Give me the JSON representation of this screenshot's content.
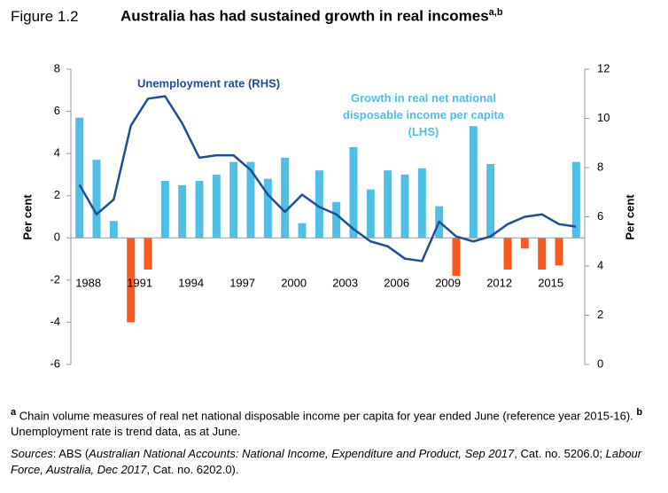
{
  "chart_data": {
    "type": "bar_line",
    "figure_label": "Figure 1.2",
    "title": "Australia has had sustained growth in real incomes",
    "title_superscript": "a,b",
    "categories": [
      "1988",
      null,
      null,
      "1991",
      null,
      null,
      "1994",
      null,
      null,
      "1997",
      null,
      null,
      "2000",
      null,
      null,
      "2003",
      null,
      null,
      "2006",
      null,
      null,
      "2009",
      null,
      null,
      "2012",
      null,
      null,
      "2015",
      null,
      null
    ],
    "series": [
      {
        "name": "Growth in real net national disposable income per capita (LHS)",
        "type": "bar",
        "color": "#4fbfe6",
        "negative_color": "#fa5a1e",
        "axis": "y",
        "values": [
          5.7,
          3.7,
          0.8,
          -4.0,
          -1.5,
          2.7,
          2.5,
          2.7,
          3.0,
          3.6,
          3.6,
          2.8,
          3.8,
          0.7,
          3.2,
          1.7,
          4.3,
          2.3,
          3.2,
          3.0,
          3.3,
          1.5,
          -1.8,
          5.3,
          3.5,
          -1.5,
          -0.5,
          -1.5,
          -1.3,
          3.6
        ]
      },
      {
        "name": "Unemployment rate (RHS)",
        "type": "line",
        "color": "#1f4e99",
        "axis": "y2",
        "values": [
          7.3,
          6.1,
          6.7,
          9.7,
          10.8,
          10.9,
          9.8,
          8.4,
          8.5,
          8.5,
          7.9,
          6.9,
          6.2,
          6.9,
          6.4,
          6.1,
          5.5,
          5.0,
          4.8,
          4.3,
          4.2,
          5.8,
          5.2,
          5.0,
          5.2,
          5.7,
          6.0,
          6.1,
          5.7,
          5.6
        ]
      }
    ],
    "ylabel": "Per cent",
    "y2label": "Per cent",
    "ylim": [
      -6,
      8
    ],
    "yticks": [
      -6,
      -4,
      -2,
      0,
      2,
      4,
      6,
      8
    ],
    "y2lim": [
      0,
      12
    ],
    "y2ticks": [
      0,
      2,
      4,
      6,
      8,
      10,
      12
    ],
    "grid": false,
    "notes": [
      {
        "marker": "a",
        "text": "Chain volume measures of real net national disposable income per capita for year ended June (reference year 2015-16)."
      },
      {
        "marker": "b",
        "text": "Unemployment rate is trend data, as at June."
      }
    ],
    "sources": [
      {
        "text": "Sources",
        "italic": true
      },
      {
        "text": ": ABS (",
        "italic": false
      },
      {
        "text": "Australian National Accounts: National Income, Expenditure and Product, Sep 2017",
        "italic": true
      },
      {
        "text": ", Cat. no. 5206.0; ",
        "italic": false
      },
      {
        "text": "Labour Force, Australia, Dec 2017",
        "italic": true
      },
      {
        "text": ", Cat. no. 6202.0).",
        "italic": false
      }
    ]
  }
}
